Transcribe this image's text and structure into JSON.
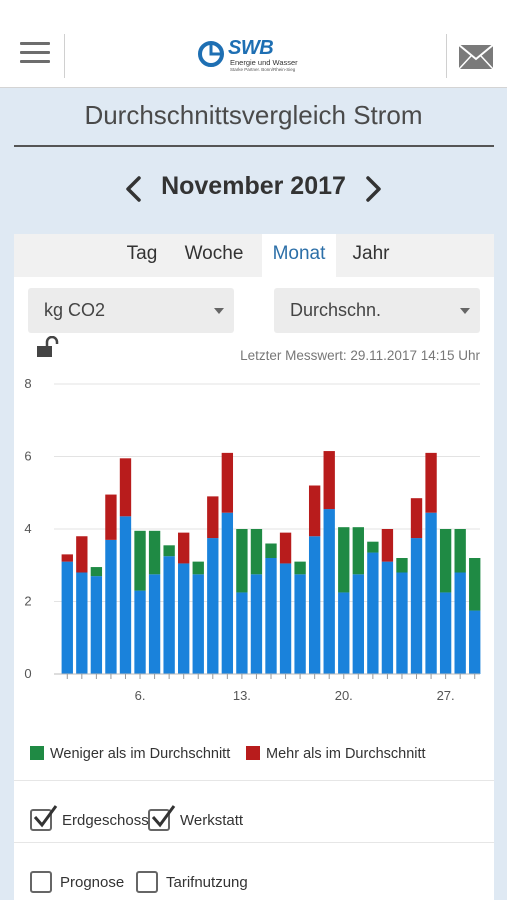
{
  "header": {
    "logo_text": "SWB",
    "logo_sub": "Energie und Wasser",
    "logo_sub2": "Starke Partner. Bonn/Rhein-Sieg"
  },
  "page": {
    "title": "Durchschnittsvergleich Strom",
    "month": "November 2017"
  },
  "tabs": [
    {
      "label": "Tag",
      "active": false
    },
    {
      "label": "Woche",
      "active": false
    },
    {
      "label": "Monat",
      "active": true
    },
    {
      "label": "Jahr",
      "active": false
    }
  ],
  "filters": {
    "unit": "kg CO2",
    "mode": "Durchschn."
  },
  "last_measurement": "Letzter Messwert: 29.11.2017 14:15 Uhr",
  "legend": {
    "less": "Weniger als im Durchschnitt",
    "more": "Mehr als im Durchschnitt"
  },
  "checkboxes": [
    {
      "label": "Erdgeschoss",
      "checked": true
    },
    {
      "label": "Werkstatt",
      "checked": true
    },
    {
      "label": "Prognose",
      "checked": false
    },
    {
      "label": "Tarifnutzung",
      "checked": false
    }
  ],
  "colors": {
    "base": "#1a82db",
    "less": "#1f8a44",
    "more": "#b81c1c",
    "accent": "#2c6fa8"
  },
  "chart_data": {
    "type": "bar",
    "stacked": true,
    "x": [
      1,
      2,
      3,
      4,
      5,
      6,
      7,
      8,
      9,
      10,
      11,
      12,
      13,
      14,
      15,
      16,
      17,
      18,
      19,
      20,
      21,
      22,
      23,
      24,
      25,
      26,
      27,
      28,
      29
    ],
    "x_tick_labels": [
      "6.",
      "13.",
      "20.",
      "27."
    ],
    "x_tick_values": [
      6,
      13,
      20,
      27
    ],
    "ylim": [
      0,
      8
    ],
    "y_ticks": [
      0,
      2,
      4,
      6,
      8
    ],
    "grid": true,
    "series": [
      {
        "name": "",
        "color": "#1a82db",
        "values": [
          3.1,
          2.8,
          2.7,
          3.7,
          4.35,
          2.3,
          2.75,
          3.25,
          3.05,
          2.75,
          3.75,
          4.45,
          2.25,
          2.75,
          3.2,
          3.05,
          2.75,
          3.8,
          4.55,
          2.25,
          2.75,
          3.35,
          3.1,
          2.8,
          3.75,
          4.45,
          2.25,
          2.8,
          1.75
        ]
      },
      {
        "name": "Weniger als im Durchschnitt",
        "color": "#1f8a44",
        "values": [
          0,
          0,
          0.25,
          0,
          0,
          1.65,
          1.2,
          0.3,
          0,
          0.35,
          0,
          0,
          1.75,
          1.25,
          0.4,
          0,
          0.35,
          0,
          0,
          1.8,
          1.3,
          0.3,
          0,
          0.4,
          0,
          0,
          1.75,
          1.2,
          1.45
        ]
      },
      {
        "name": "Mehr als im Durchschnitt",
        "color": "#b81c1c",
        "values": [
          0.2,
          1.0,
          0,
          1.25,
          1.6,
          0,
          0,
          0,
          0.85,
          0,
          1.15,
          1.65,
          0,
          0,
          0,
          0.85,
          0,
          1.4,
          1.6,
          0,
          0,
          0,
          0.9,
          0,
          1.1,
          1.65,
          0,
          0,
          0
        ]
      }
    ],
    "legend_position": "bottom"
  }
}
